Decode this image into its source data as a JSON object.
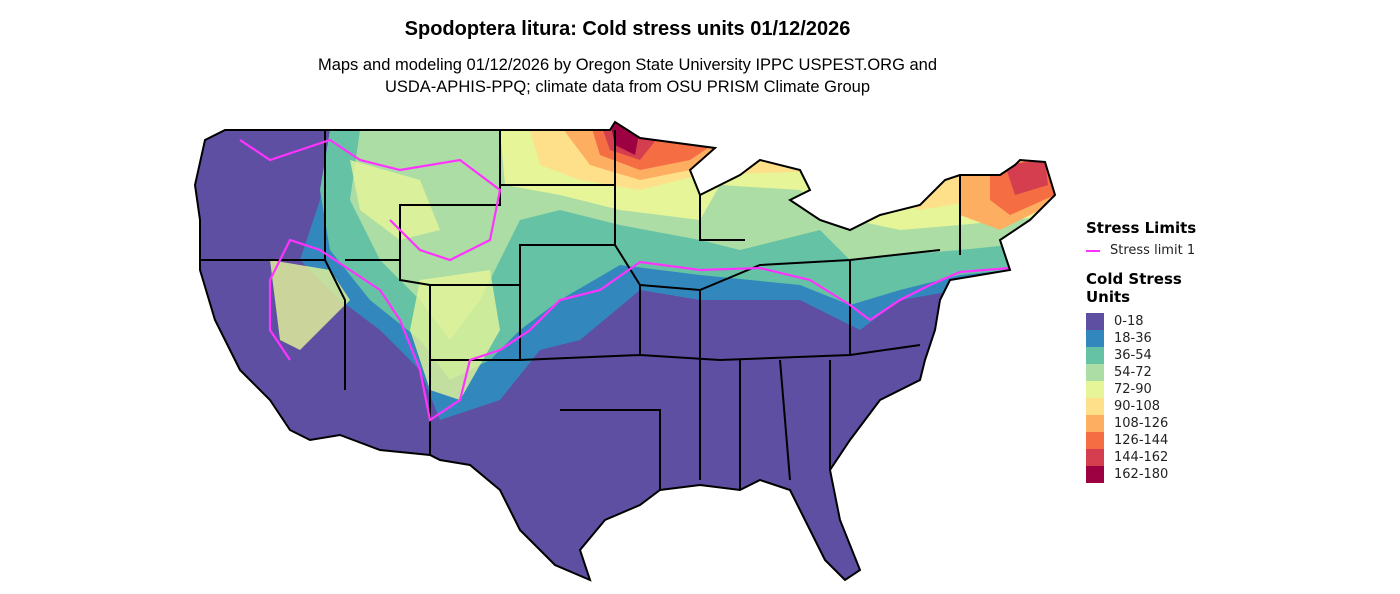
{
  "title": "Spodoptera litura: Cold stress units 01/12/2026",
  "subtitle_line1": "Maps and modeling 01/12/2026 by Oregon State University IPPC USPEST.ORG and",
  "subtitle_line2": "USDA-APHIS-PPQ; climate data from OSU PRISM Climate Group",
  "legend": {
    "stress_title": "Stress Limits",
    "stress_items": [
      {
        "label": "Stress limit 1",
        "color": "#ff33ff"
      }
    ],
    "units_title_1": "Cold Stress",
    "units_title_2": "Units",
    "classes": [
      {
        "label": "0-18",
        "color": "#5E4FA2"
      },
      {
        "label": "18-36",
        "color": "#3288BD"
      },
      {
        "label": "36-54",
        "color": "#66C2A5"
      },
      {
        "label": "54-72",
        "color": "#ABDDA4"
      },
      {
        "label": "72-90",
        "color": "#E6F598"
      },
      {
        "label": "90-108",
        "color": "#FEE08B"
      },
      {
        "label": "108-126",
        "color": "#FDAE61"
      },
      {
        "label": "126-144",
        "color": "#F46D43"
      },
      {
        "label": "144-162",
        "color": "#D53E4F"
      },
      {
        "label": "162-180",
        "color": "#9E0142"
      }
    ]
  }
}
